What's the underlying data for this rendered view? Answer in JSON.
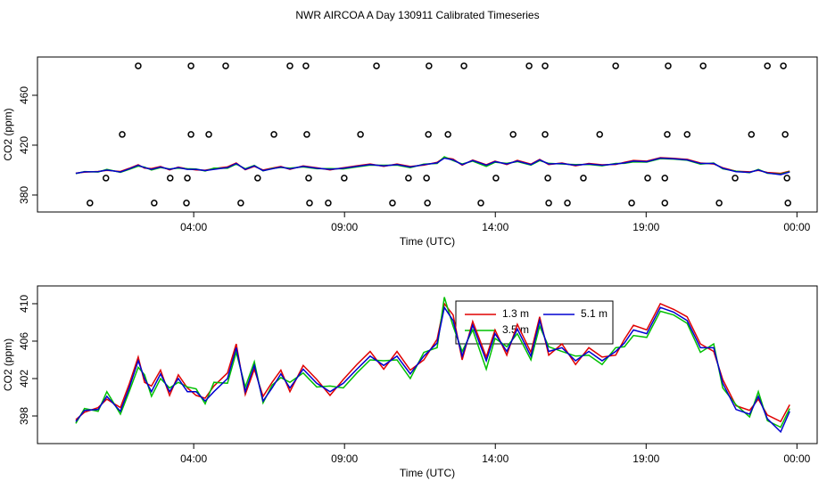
{
  "title": "NWR AIRCOA A  Day 130911  Calibrated Timeseries",
  "chart_data": [
    {
      "type": "line",
      "xlabel": "Time (UTC)",
      "ylabel": "CO2 (ppm)",
      "xlim": [
        -1.18,
        24.67
      ],
      "ylim": [
        366.4,
        490.7
      ],
      "xticks": [
        {
          "value": 4,
          "label": "04:00"
        },
        {
          "value": 9,
          "label": "09:00"
        },
        {
          "value": 14,
          "label": "14:00"
        },
        {
          "value": 19,
          "label": "19:00"
        },
        {
          "value": 24,
          "label": "00:00"
        }
      ],
      "yticks": [
        380,
        420,
        460
      ],
      "x": [
        0.09,
        0.38,
        0.83,
        1.12,
        1.57,
        1.86,
        2.16,
        2.37,
        2.6,
        2.9,
        3.2,
        3.49,
        3.79,
        4.08,
        4.38,
        4.67,
        5.12,
        5.41,
        5.71,
        6.01,
        6.3,
        6.6,
        6.89,
        7.19,
        7.63,
        8.08,
        8.52,
        8.96,
        9.41,
        9.85,
        10.3,
        10.74,
        11.18,
        11.63,
        12.07,
        12.31,
        12.6,
        12.9,
        13.25,
        13.7,
        13.99,
        14.38,
        14.73,
        15.18,
        15.47,
        15.77,
        16.21,
        16.66,
        17.1,
        17.54,
        17.99,
        18.28,
        18.58,
        19.02,
        19.47,
        19.91,
        20.36,
        20.8,
        21.24,
        21.54,
        21.98,
        22.43,
        22.72,
        23.02,
        23.46,
        23.76
      ],
      "series": [
        {
          "color": "#e00000",
          "values": [
            397.6,
            398.4,
            398.9,
            399.8,
            398.9,
            401.4,
            404.3,
            401.6,
            401.2,
            402.9,
            400.2,
            402.4,
            401.0,
            400.2,
            399.9,
            401.2,
            402.6,
            405.7,
            400.3,
            403.0,
            400.1,
            401.6,
            402.9,
            400.6,
            403.4,
            401.9,
            400.2,
            401.9,
            403.5,
            404.9,
            403.0,
            404.9,
            402.9,
            404.0,
            406.2,
            410.0,
            408.8,
            404.0,
            408.1,
            404.3,
            407.2,
            404.5,
            407.8,
            404.8,
            408.6,
            404.5,
            405.7,
            403.5,
            405.3,
            404.3,
            404.5,
            406.2,
            407.7,
            407.2,
            410.0,
            409.4,
            408.6,
            405.7,
            404.9,
            401.9,
            399.1,
            398.6,
            399.8,
            398.1,
            397.4,
            399.2
          ]
        },
        {
          "color": "#00c000",
          "values": [
            397.2,
            398.8,
            398.5,
            400.6,
            398.2,
            400.6,
            403.2,
            402.4,
            400.1,
            402.0,
            401.0,
            401.6,
            401.1,
            400.9,
            399.3,
            401.6,
            401.5,
            404.8,
            401.1,
            403.8,
            399.4,
            401.3,
            402.1,
            401.6,
            402.6,
            401.1,
            401.2,
            401.0,
            402.6,
            404.0,
            403.9,
            404.0,
            402.0,
            404.8,
            405.3,
            410.7,
            407.6,
            404.9,
            407.2,
            403.0,
            406.3,
            405.4,
            406.8,
            404.0,
            407.6,
            405.4,
            404.9,
            404.4,
            404.5,
            403.5,
            405.3,
            405.4,
            406.6,
            406.4,
            409.2,
            408.8,
            407.9,
            404.8,
            405.7,
            401.0,
            399.2,
            397.9,
            400.6,
            397.5,
            396.8,
            398.8
          ]
        },
        {
          "color": "#0000d0",
          "values": [
            397.4,
            398.6,
            398.7,
            400.1,
            398.5,
            401.0,
            403.9,
            402.0,
            400.6,
            402.5,
            400.6,
            402.0,
            400.6,
            400.6,
            399.6,
            400.6,
            402.0,
            405.3,
            400.6,
            403.4,
            399.6,
            401.0,
            402.5,
            401.0,
            403.0,
            401.5,
            400.6,
            401.5,
            403.0,
            404.4,
            403.4,
            404.4,
            402.5,
            404.4,
            405.8,
            409.6,
            408.2,
            404.4,
            407.7,
            403.9,
            406.8,
            404.9,
            407.3,
            404.4,
            408.2,
            404.9,
            405.3,
            403.9,
            404.9,
            403.9,
            404.9,
            405.8,
            407.2,
            406.8,
            409.6,
            409.1,
            408.2,
            405.3,
            405.3,
            401.5,
            398.7,
            398.2,
            400.1,
            397.7,
            396.3,
            398.5
          ]
        }
      ],
      "points": {
        "color": "#000000",
        "x": [
          2.16,
          3.91,
          5.06,
          7.19,
          7.72,
          10.06,
          11.8,
          12.96,
          15.12,
          15.65,
          17.99,
          19.73,
          20.89,
          23.02,
          23.55,
          1.63,
          3.91,
          4.5,
          6.66,
          7.75,
          9.53,
          11.78,
          12.43,
          14.59,
          15.65,
          17.46,
          19.7,
          20.36,
          22.49,
          23.61,
          1.09,
          3.22,
          3.79,
          6.12,
          7.81,
          8.99,
          11.12,
          11.72,
          14.02,
          15.74,
          16.92,
          19.05,
          19.62,
          21.95,
          23.67,
          0.56,
          2.69,
          3.76,
          5.56,
          7.84,
          8.46,
          10.59,
          11.75,
          13.52,
          15.77,
          16.39,
          18.52,
          19.62,
          21.42,
          23.7
        ],
        "values": [
          483.6,
          483.6,
          483.6,
          483.6,
          483.6,
          483.6,
          483.6,
          483.6,
          483.6,
          483.6,
          483.6,
          483.6,
          483.6,
          483.6,
          483.6,
          428.6,
          428.6,
          428.6,
          428.6,
          428.6,
          428.6,
          428.6,
          428.6,
          428.6,
          428.6,
          428.6,
          428.6,
          428.6,
          428.6,
          428.6,
          393.6,
          393.6,
          393.6,
          393.6,
          393.6,
          393.6,
          393.6,
          393.6,
          393.6,
          393.6,
          393.6,
          393.6,
          393.6,
          393.6,
          393.6,
          373.6,
          373.6,
          373.6,
          373.6,
          373.6,
          373.6,
          373.6,
          373.6,
          373.6,
          373.6,
          373.6,
          373.6,
          373.6,
          373.6,
          373.6
        ]
      }
    },
    {
      "type": "line",
      "xlabel": "Time (UTC)",
      "ylabel": "CO2 (ppm)",
      "legend": "top",
      "xlim": [
        -1.18,
        24.67
      ],
      "ylim": [
        395.05,
        411.9
      ],
      "xticks": [
        {
          "value": 4,
          "label": "04:00"
        },
        {
          "value": 9,
          "label": "09:00"
        },
        {
          "value": 14,
          "label": "14:00"
        },
        {
          "value": 19,
          "label": "19:00"
        },
        {
          "value": 24,
          "label": "00:00"
        }
      ],
      "yticks": [
        398,
        402,
        406,
        410
      ],
      "x": [
        0.09,
        0.38,
        0.83,
        1.12,
        1.57,
        1.86,
        2.16,
        2.37,
        2.6,
        2.9,
        3.2,
        3.49,
        3.79,
        4.08,
        4.38,
        4.67,
        5.12,
        5.41,
        5.71,
        6.01,
        6.3,
        6.6,
        6.89,
        7.19,
        7.63,
        8.08,
        8.52,
        8.96,
        9.41,
        9.85,
        10.3,
        10.74,
        11.18,
        11.63,
        12.07,
        12.31,
        12.6,
        12.9,
        13.25,
        13.7,
        13.99,
        14.38,
        14.73,
        15.18,
        15.47,
        15.77,
        16.21,
        16.66,
        17.1,
        17.54,
        17.99,
        18.28,
        18.58,
        19.02,
        19.47,
        19.91,
        20.36,
        20.8,
        21.24,
        21.54,
        21.98,
        22.43,
        22.72,
        23.02,
        23.46,
        23.76
      ],
      "series": [
        {
          "name": "1.3 m",
          "color": "#e00000",
          "values": [
            397.6,
            398.4,
            398.9,
            399.8,
            398.9,
            401.4,
            404.3,
            401.6,
            401.2,
            402.9,
            400.2,
            402.4,
            401.0,
            400.2,
            399.9,
            401.2,
            402.6,
            405.7,
            400.3,
            403.0,
            400.1,
            401.6,
            402.9,
            400.6,
            403.4,
            401.9,
            400.2,
            401.9,
            403.5,
            404.9,
            403.0,
            404.9,
            402.9,
            404.0,
            406.2,
            410.0,
            408.8,
            404.0,
            408.1,
            404.3,
            407.2,
            404.5,
            407.8,
            404.8,
            408.6,
            404.5,
            405.7,
            403.5,
            405.3,
            404.3,
            404.5,
            406.2,
            407.7,
            407.2,
            410.0,
            409.4,
            408.6,
            405.7,
            404.9,
            401.9,
            399.1,
            398.6,
            399.8,
            398.1,
            397.4,
            399.2
          ]
        },
        {
          "name": "3.5 m",
          "color": "#00c000",
          "values": [
            397.2,
            398.8,
            398.5,
            400.6,
            398.2,
            400.6,
            403.2,
            402.4,
            400.1,
            402.0,
            401.0,
            401.6,
            401.1,
            400.9,
            399.3,
            401.6,
            401.5,
            404.8,
            401.1,
            403.8,
            399.4,
            401.3,
            402.1,
            401.6,
            402.6,
            401.1,
            401.2,
            401.0,
            402.6,
            404.0,
            403.9,
            404.0,
            402.0,
            404.8,
            405.3,
            410.7,
            407.6,
            404.9,
            407.2,
            403.0,
            406.3,
            405.4,
            406.8,
            404.0,
            407.6,
            405.4,
            404.9,
            404.4,
            404.5,
            403.5,
            405.3,
            405.4,
            406.6,
            406.4,
            409.2,
            408.8,
            407.9,
            404.8,
            405.7,
            401.0,
            399.2,
            397.9,
            400.6,
            397.5,
            396.8,
            398.8
          ]
        },
        {
          "name": "5.1 m",
          "color": "#0000d0",
          "values": [
            397.4,
            398.6,
            398.7,
            400.1,
            398.5,
            401.0,
            403.9,
            402.0,
            400.6,
            402.5,
            400.6,
            402.0,
            400.6,
            400.6,
            399.6,
            400.6,
            402.0,
            405.3,
            400.6,
            403.4,
            399.6,
            401.0,
            402.5,
            401.0,
            403.0,
            401.5,
            400.6,
            401.5,
            403.0,
            404.4,
            403.4,
            404.4,
            402.5,
            404.4,
            405.8,
            409.6,
            408.2,
            404.4,
            407.7,
            403.9,
            406.8,
            404.9,
            407.3,
            404.4,
            408.2,
            404.9,
            405.3,
            403.9,
            404.9,
            403.9,
            404.9,
            405.8,
            407.2,
            406.8,
            409.6,
            409.1,
            408.2,
            405.3,
            405.3,
            401.5,
            398.7,
            398.2,
            400.1,
            397.7,
            396.3,
            398.5
          ]
        }
      ]
    }
  ]
}
